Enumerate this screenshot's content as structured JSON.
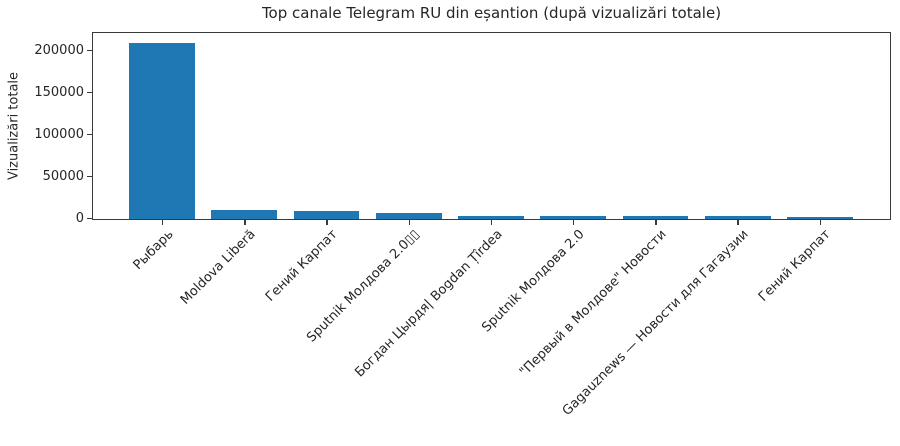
{
  "chart_data": {
    "type": "bar",
    "title": "Top canale Telegram RU din eșantion (după vizualizări totale)",
    "xlabel": "",
    "ylabel": "Vizualizări totale",
    "categories": [
      "Рыбарь",
      "Moldova Liberă",
      "Гений Карпат",
      "Sputnik Молдова 2.0▯▯",
      "Богдан Цырдя| Bogdan Țîrdea",
      "Sputnik Молдова 2.0",
      "\"Первый в Молдове\" Новости",
      "Gagauznews — Новости для Гагаузии",
      "Гений Карпат"
    ],
    "values": [
      210000,
      10500,
      9000,
      7500,
      4000,
      3600,
      3300,
      3100,
      2900
    ],
    "yticks": [
      0,
      50000,
      100000,
      150000,
      200000
    ],
    "ylim": [
      0,
      220500
    ],
    "xlim": [
      -0.84,
      8.84
    ],
    "bar_rel_width": 0.8,
    "x_tick_rotation_deg": 45,
    "grid": false,
    "legend_position": "none",
    "bar_color": "#1f77b4",
    "axis_color": "#3a3a3a",
    "text_color": "#262626"
  }
}
